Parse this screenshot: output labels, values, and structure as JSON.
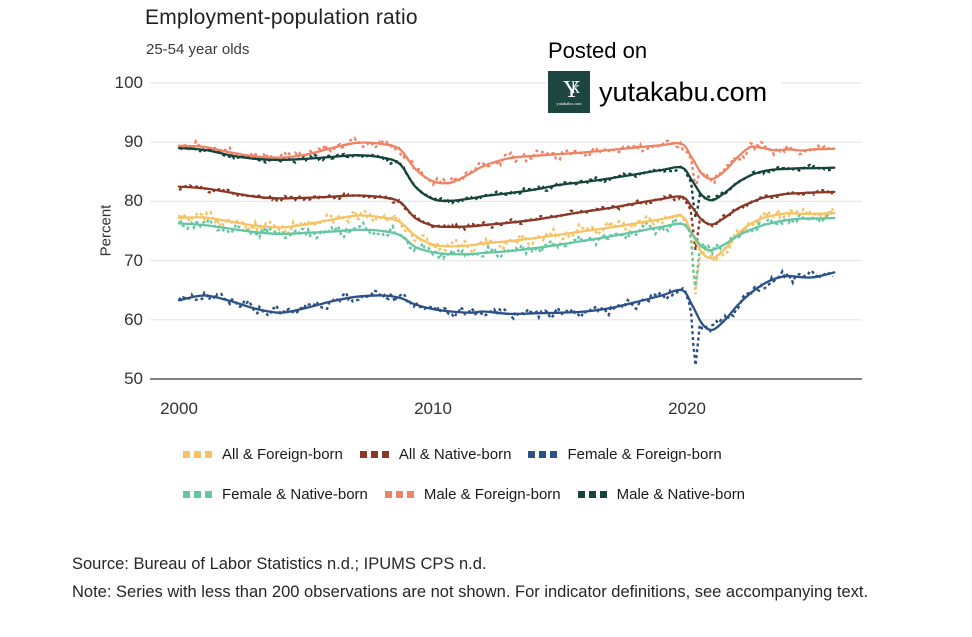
{
  "title": "Employment-population ratio",
  "subtitle": "25-54 year olds",
  "watermark": {
    "posted_on": "Posted on",
    "site": "yutakabu.com",
    "logo_monogram_y": "Y",
    "logo_monogram_k": "k",
    "logo_caption": "yutakabu.com",
    "logo_bg": "#1d4640"
  },
  "footer": {
    "source": "Source: Bureau of Labor Statistics n.d.; IPUMS CPS n.d.",
    "note": "Note: Series with less than 200 observations are not shown. For indicator definitions, see accompanying text."
  },
  "colors": {
    "background": "#ffffff",
    "gridline": "#e7e7e7",
    "axis_line": "#808080",
    "tick_text": "#333333"
  },
  "chart_data": {
    "type": "line",
    "title": "Employment-population ratio",
    "subtitle": "25-54 year olds",
    "ylabel": "Percent",
    "xlabel": "",
    "ylim": [
      50,
      100
    ],
    "yticks": [
      50,
      60,
      70,
      80,
      90,
      100
    ],
    "xticks": [
      2000,
      2010,
      2020
    ],
    "xlim": [
      2000,
      2025.8
    ],
    "grid": true,
    "legend_position": "bottom",
    "style_note": "each series drawn twice: dashed noisy monthly values and smooth trend line in same color",
    "x": [
      2000,
      2001,
      2002,
      2003,
      2004,
      2005,
      2006,
      2007,
      2008,
      2008.7,
      2009.3,
      2010,
      2010.7,
      2011.5,
      2012,
      2013,
      2014,
      2015,
      2016,
      2017,
      2018,
      2019,
      2019.8,
      2020.2,
      2020.6,
      2021,
      2021.5,
      2022,
      2022.5,
      2023,
      2023.5,
      2024,
      2024.5,
      2025,
      2025.8
    ],
    "series": [
      {
        "name": "All & Foreign-born",
        "color": "#F5C365",
        "noise": 1.1,
        "covid_monthly_low": 65.0,
        "values": [
          77.2,
          77.3,
          76.6,
          75.9,
          75.6,
          76.1,
          76.9,
          77.6,
          77.3,
          76.5,
          74.2,
          72.7,
          72.4,
          72.6,
          72.9,
          73.3,
          73.8,
          74.4,
          75.0,
          75.6,
          76.3,
          77.0,
          77.5,
          74.5,
          71.3,
          70.4,
          72.0,
          74.5,
          76.2,
          77.2,
          77.7,
          78.0,
          77.9,
          77.9,
          78.0
        ]
      },
      {
        "name": "All & Native-born",
        "color": "#8A3826",
        "noise": 0.5,
        "covid_monthly_low": 71.4,
        "values": [
          82.5,
          82.2,
          81.5,
          80.8,
          80.5,
          80.6,
          80.8,
          81.0,
          80.7,
          79.9,
          77.2,
          75.9,
          75.7,
          75.8,
          76.0,
          76.4,
          76.9,
          77.6,
          78.3,
          78.9,
          79.7,
          80.4,
          80.8,
          79.0,
          76.8,
          76.1,
          77.3,
          78.8,
          79.8,
          80.6,
          81.0,
          81.3,
          81.4,
          81.5,
          81.6
        ]
      },
      {
        "name": "Female & Foreign-born",
        "color": "#2C5187",
        "noise": 0.95,
        "covid_monthly_low": 52.3,
        "values": [
          63.3,
          64.1,
          63.2,
          61.9,
          61.2,
          62.0,
          63.1,
          63.9,
          64.1,
          63.7,
          62.6,
          61.8,
          61.4,
          61.2,
          61.4,
          61.0,
          61.1,
          61.2,
          61.4,
          62.0,
          63.0,
          64.1,
          65.0,
          62.5,
          59.3,
          58.3,
          60.0,
          62.5,
          64.5,
          66.0,
          67.0,
          67.4,
          67.2,
          67.2,
          68.0
        ]
      },
      {
        "name": "Female & Native-born",
        "color": "#66C6A3",
        "noise": 1.0,
        "covid_monthly_low": 66.0,
        "values": [
          76.3,
          76.0,
          75.4,
          74.8,
          74.5,
          74.7,
          74.9,
          75.2,
          75.0,
          74.3,
          72.3,
          71.4,
          71.1,
          71.1,
          71.3,
          71.6,
          72.1,
          72.7,
          73.4,
          74.1,
          74.9,
          75.7,
          76.2,
          74.5,
          72.3,
          71.8,
          72.8,
          74.2,
          75.2,
          76.0,
          76.5,
          76.9,
          77.1,
          77.1,
          77.2
        ]
      },
      {
        "name": "Male & Foreign-born",
        "color": "#EE8365",
        "noise": 0.85,
        "covid_monthly_low": 82.3,
        "values": [
          89.4,
          89.2,
          88.3,
          87.6,
          87.4,
          87.9,
          89.0,
          89.9,
          89.7,
          88.8,
          85.5,
          83.4,
          83.2,
          84.8,
          86.0,
          87.3,
          87.7,
          88.0,
          88.3,
          88.7,
          89.1,
          89.5,
          89.7,
          87.3,
          84.6,
          83.8,
          85.2,
          87.5,
          89.2,
          89.0,
          88.6,
          88.8,
          88.6,
          88.8,
          88.9
        ]
      },
      {
        "name": "Male & Native-born",
        "color": "#15443C",
        "noise": 0.5,
        "covid_monthly_low": 77.3,
        "values": [
          89.0,
          88.7,
          87.8,
          87.2,
          87.0,
          87.2,
          87.5,
          87.8,
          87.4,
          86.3,
          82.5,
          80.4,
          80.1,
          80.5,
          80.9,
          81.4,
          82.0,
          82.8,
          83.3,
          83.9,
          84.6,
          85.3,
          85.7,
          83.5,
          81.0,
          80.2,
          81.5,
          83.2,
          84.4,
          85.1,
          85.4,
          85.5,
          85.6,
          85.6,
          85.7
        ]
      }
    ]
  }
}
